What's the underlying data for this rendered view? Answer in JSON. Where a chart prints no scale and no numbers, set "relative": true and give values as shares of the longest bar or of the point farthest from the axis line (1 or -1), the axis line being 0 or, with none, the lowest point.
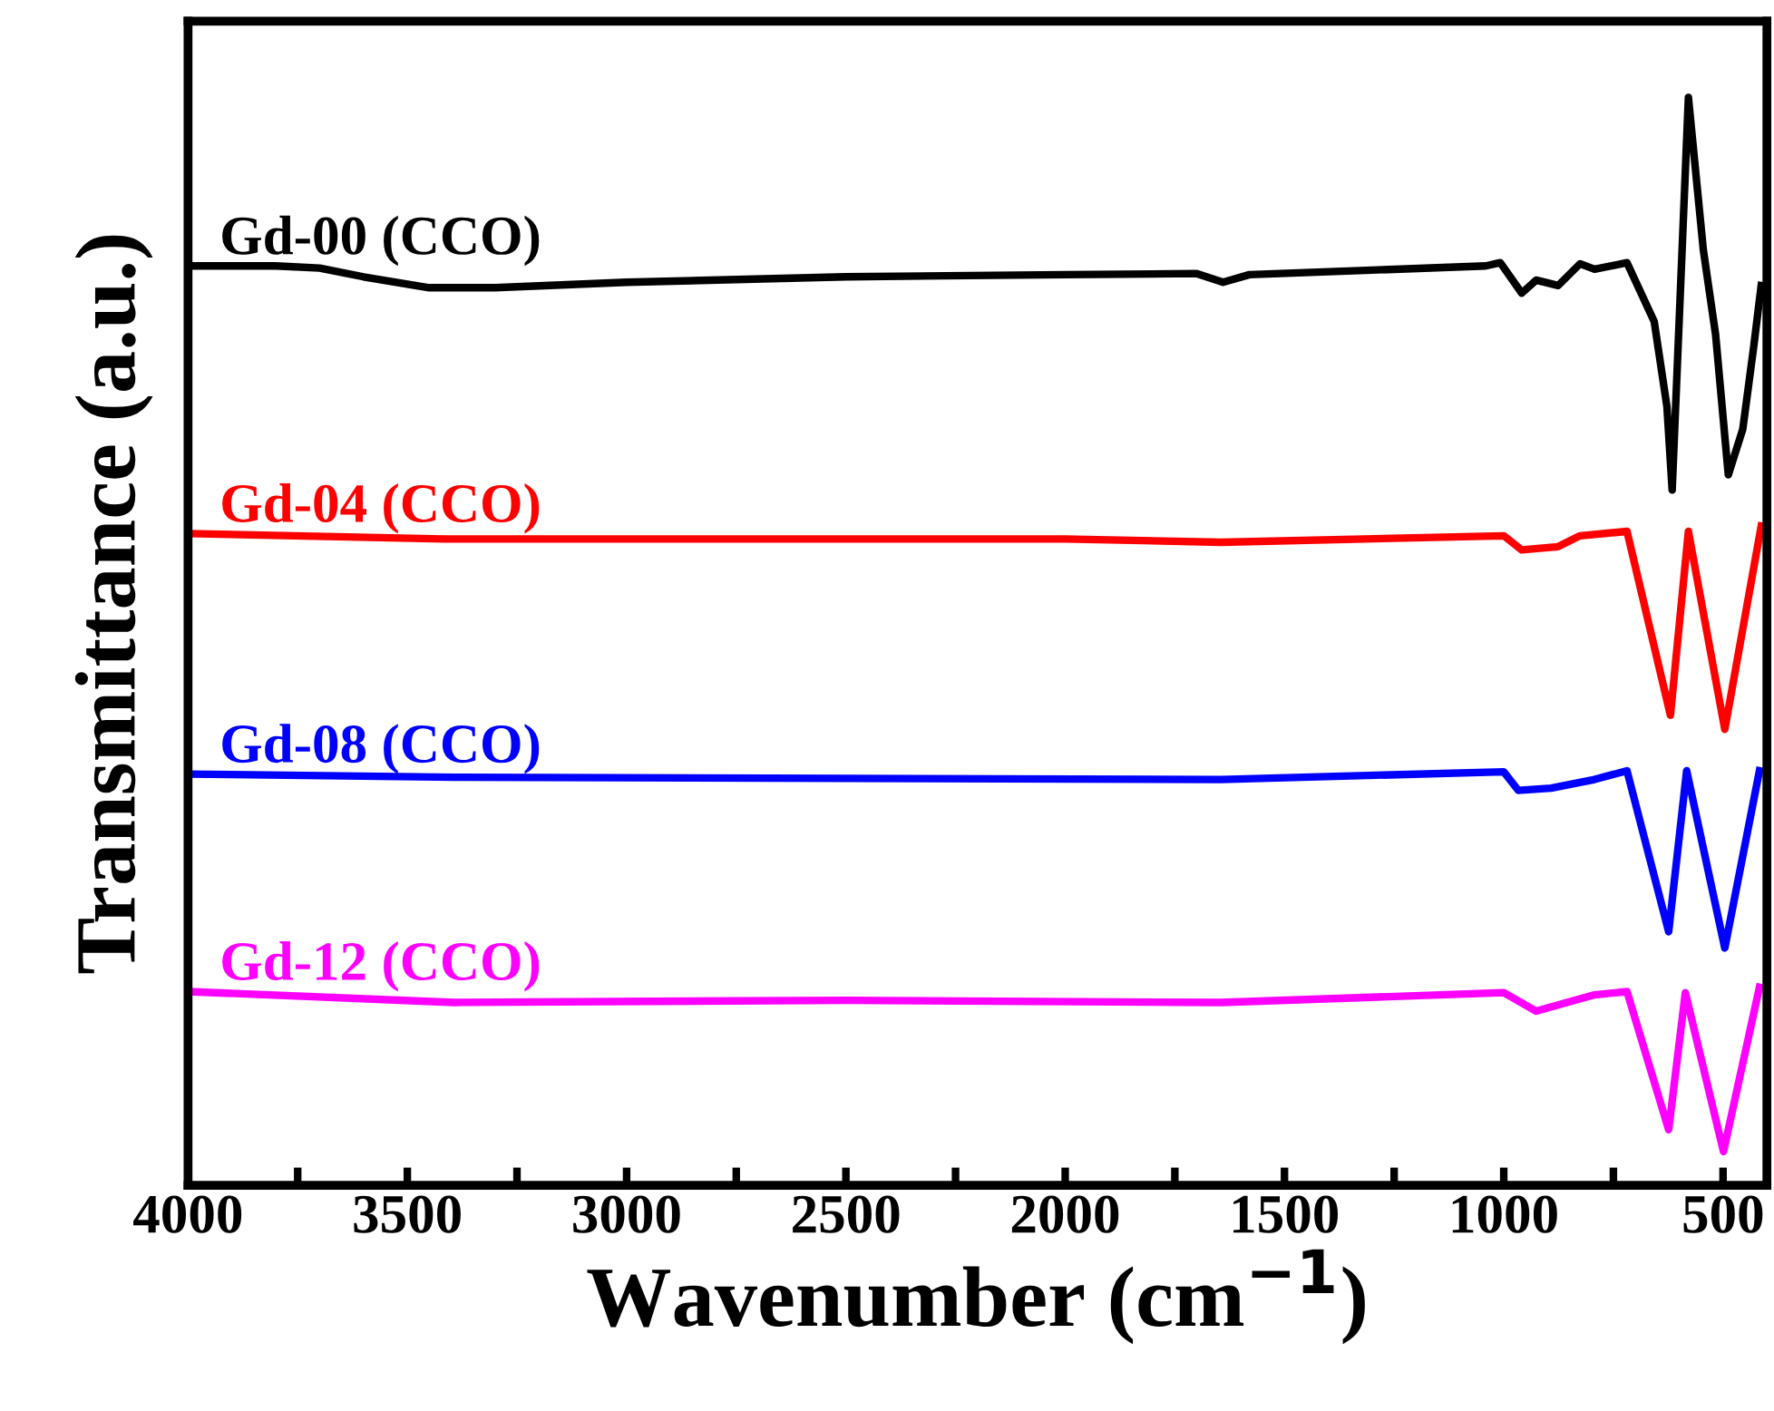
{
  "chart_data": {
    "type": "line",
    "relative": true,
    "xlabel": "Wavenumber (cm$^{−1}$)",
    "ylabel": "Transmittance (a.u.)",
    "xlim": [
      4000,
      400
    ],
    "xticks": [
      4000,
      {
        "value": 3750,
        "label": null
      },
      3500,
      {
        "value": 3250,
        "label": null
      },
      3000,
      {
        "value": 2750,
        "label": null
      },
      2500,
      {
        "value": 2250,
        "label": null
      },
      2000,
      {
        "value": 1750,
        "label": null
      },
      1500,
      {
        "value": 1250,
        "label": null
      },
      1000,
      {
        "value": 750,
        "label": null
      },
      500
    ],
    "grid": false,
    "legend": false,
    "marker": "none",
    "line_style": "solid",
    "series": [
      {
        "name": "Gd-00 (CCO)",
        "color": "#000000",
        "x": [
          4000,
          3800,
          3700,
          3600,
          3450,
          3300,
          3000,
          2500,
          2000,
          1700,
          1640,
          1580,
          1041,
          1008,
          959,
          926,
          876,
          826,
          793,
          719,
          657,
          628,
          616,
          579,
          545,
          517,
          488,
          455,
          430,
          413
        ],
        "values": [
          0.845,
          0.845,
          0.843,
          0.835,
          0.825,
          0.825,
          0.83,
          0.835,
          0.837,
          0.838,
          0.83,
          0.837,
          0.845,
          0.848,
          0.82,
          0.832,
          0.827,
          0.847,
          0.842,
          0.848,
          0.794,
          0.716,
          0.639,
          1.0,
          0.86,
          0.782,
          0.653,
          0.695,
          0.771,
          0.827
        ]
      },
      {
        "name": "Gd-04 (CCO)",
        "color": "#ff0000",
        "x": [
          4000,
          3417,
          3000,
          2000,
          1645,
          1000,
          959,
          876,
          826,
          719,
          620,
          579,
          496,
          413
        ],
        "values": [
          0.599,
          0.594,
          0.594,
          0.594,
          0.591,
          0.597,
          0.584,
          0.587,
          0.597,
          0.601,
          0.432,
          0.601,
          0.419,
          0.606
        ]
      },
      {
        "name": "Gd-08 (CCO)",
        "color": "#0000ff",
        "x": [
          4000,
          3393,
          2500,
          1645,
          1000,
          967,
          892,
          793,
          719,
          624,
          583,
          496,
          417
        ],
        "values": [
          0.378,
          0.375,
          0.374,
          0.373,
          0.38,
          0.363,
          0.365,
          0.373,
          0.381,
          0.233,
          0.381,
          0.218,
          0.381
        ]
      },
      {
        "name": "Gd-12 (CCO)",
        "color": "#ff00ff",
        "x": [
          4000,
          3393,
          2500,
          1645,
          1000,
          926,
          793,
          719,
          624,
          586,
          499,
          417
        ],
        "values": [
          0.178,
          0.168,
          0.17,
          0.168,
          0.177,
          0.16,
          0.175,
          0.178,
          0.051,
          0.177,
          0.031,
          0.182
        ]
      }
    ]
  }
}
